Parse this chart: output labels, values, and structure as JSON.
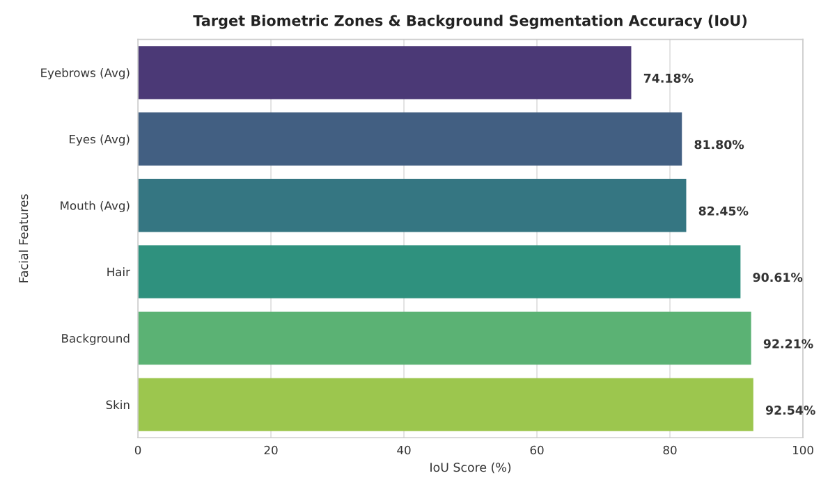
{
  "chart_data": {
    "type": "bar",
    "orientation": "horizontal",
    "title": "Target Biometric Zones & Background Segmentation Accuracy (IoU)",
    "xlabel": "IoU Score (%)",
    "ylabel": "Facial Features",
    "categories": [
      "Eyebrows (Avg)",
      "Eyes (Avg)",
      "Mouth (Avg)",
      "Hair",
      "Background",
      "Skin"
    ],
    "values": [
      74.18,
      81.8,
      82.45,
      90.61,
      92.21,
      92.54
    ],
    "value_labels": [
      "74.18%",
      "81.80%",
      "82.45%",
      "90.61%",
      "92.21%",
      "92.54%"
    ],
    "colors": [
      "#4b3976",
      "#425f82",
      "#357682",
      "#2f917e",
      "#5bb274",
      "#9cc64e"
    ],
    "xlim": [
      0,
      100
    ],
    "xticks": [
      0,
      20,
      40,
      60,
      80,
      100
    ],
    "grid": "x"
  }
}
